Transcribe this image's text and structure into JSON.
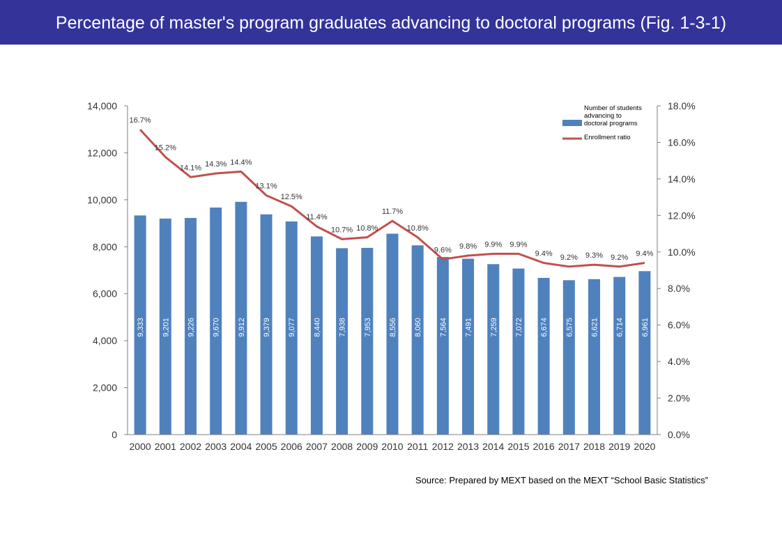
{
  "header": {
    "title": "Percentage of master's program graduates advancing to doctoral programs (Fig. 1-3-1)"
  },
  "source": "Source: Prepared by MEXT based on the MEXT “School Basic Statistics”",
  "colors": {
    "header_bg": "#333399",
    "bar": "#4F81BD",
    "line": "#C0504D"
  },
  "chart_data": {
    "type": "bar",
    "categories": [
      "2000",
      "2001",
      "2002",
      "2003",
      "2004",
      "2005",
      "2006",
      "2007",
      "2008",
      "2009",
      "2010",
      "2011",
      "2012",
      "2013",
      "2014",
      "2015",
      "2016",
      "2017",
      "2018",
      "2019",
      "2020"
    ],
    "series": [
      {
        "name": "Number of students advancing to doctoral programs",
        "type": "bar",
        "axis": "left",
        "values": [
          9333,
          9201,
          9226,
          9670,
          9912,
          9379,
          9077,
          8440,
          7938,
          7953,
          8556,
          8060,
          7564,
          7491,
          7259,
          7072,
          6674,
          6575,
          6621,
          6714,
          6961
        ],
        "labels": [
          "9,333",
          "9,201",
          "9,226",
          "9,670",
          "9,912",
          "9,379",
          "9,077",
          "8,440",
          "7,938",
          "7,953",
          "8,556",
          "8,060",
          "7,564",
          "7,491",
          "7,259",
          "7,072",
          "6,674",
          "6,575",
          "6,621",
          "6,714",
          "6,961"
        ]
      },
      {
        "name": "Enrollment ratio",
        "type": "line",
        "axis": "right",
        "values": [
          16.7,
          15.2,
          14.1,
          14.3,
          14.4,
          13.1,
          12.5,
          11.4,
          10.7,
          10.8,
          11.7,
          10.8,
          9.6,
          9.8,
          9.9,
          9.9,
          9.4,
          9.2,
          9.3,
          9.2,
          9.4
        ],
        "labels": [
          "16.7%",
          "15.2%",
          "14.1%",
          "14.3%",
          "14.4%",
          "13.1%",
          "12.5%",
          "11.4%",
          "10.7%",
          "10.8%",
          "11.7%",
          "10.8%",
          "9.6%",
          "9.8%",
          "9.9%",
          "9.9%",
          "9.4%",
          "9.2%",
          "9.3%",
          "9.2%",
          "9.4%"
        ]
      }
    ],
    "y_left": {
      "range": [
        0,
        14000
      ],
      "ticks": [
        0,
        2000,
        4000,
        6000,
        8000,
        10000,
        12000,
        14000
      ],
      "tick_labels": [
        "0",
        "2,000",
        "4,000",
        "6,000",
        "8,000",
        "10,000",
        "12,000",
        "14,000"
      ]
    },
    "y_right": {
      "range": [
        0,
        18
      ],
      "ticks": [
        0,
        2,
        4,
        6,
        8,
        10,
        12,
        14,
        16,
        18
      ],
      "tick_labels": [
        "0.0%",
        "2.0%",
        "4.0%",
        "6.0%",
        "8.0%",
        "10.0%",
        "12.0%",
        "14.0%",
        "16.0%",
        "18.0%"
      ]
    },
    "legend": {
      "placement": "top-right",
      "bar_lines": [
        "Number of students",
        "advancing to",
        "doctoral programs"
      ],
      "line_label": "Enrollment  ratio"
    },
    "grid": false
  }
}
